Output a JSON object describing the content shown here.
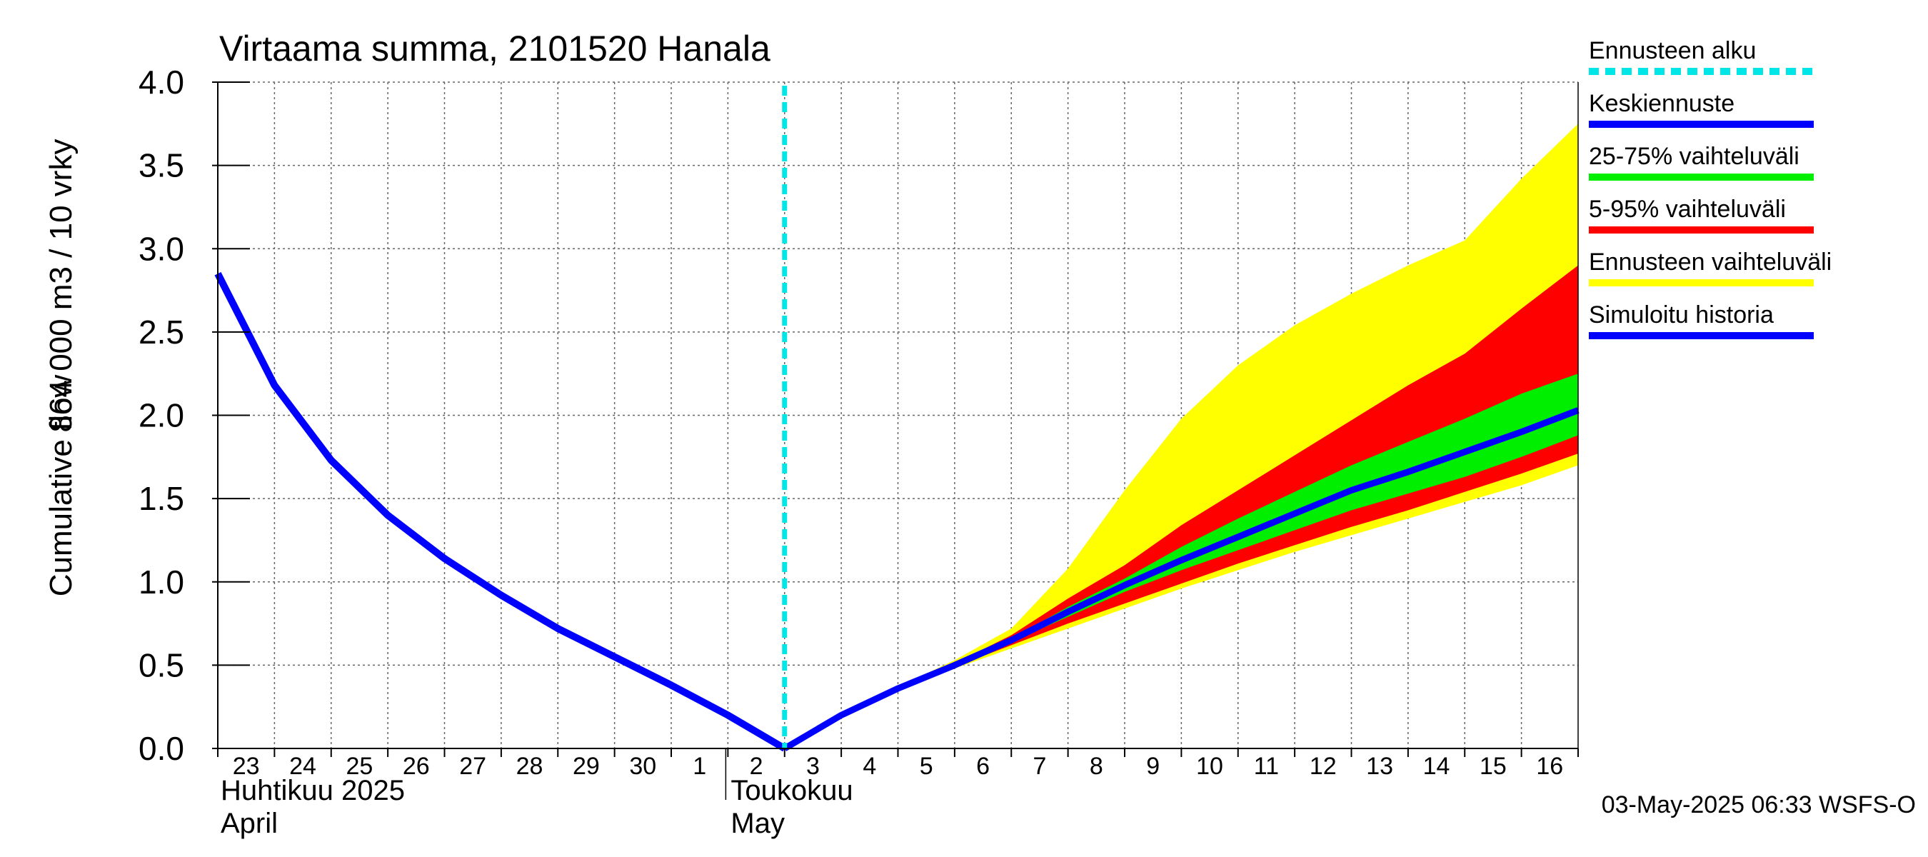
{
  "chart_data": {
    "type": "area",
    "title": "Virtaama summa, 2101520 Hanala",
    "ylabel_line1": "Cumulative flow",
    "ylabel_line2": "864 000 m3 / 10 vrky",
    "ylim": [
      0,
      4.0
    ],
    "y_ticks": [
      "0.0",
      "0.5",
      "1.0",
      "1.5",
      "2.0",
      "2.5",
      "3.0",
      "3.5",
      "4.0"
    ],
    "x_range_days": [
      0,
      24
    ],
    "x_day_labels": [
      "23",
      "24",
      "25",
      "26",
      "27",
      "28",
      "29",
      "30",
      "1",
      "2",
      "3",
      "4",
      "5",
      "6",
      "7",
      "8",
      "9",
      "10",
      "11",
      "12",
      "13",
      "14",
      "15",
      "16"
    ],
    "month_labels": [
      {
        "fi": "Huhtikuu  2025",
        "en": "April",
        "day": 0
      },
      {
        "fi": "Toukokuu",
        "en": "May",
        "day": 9
      }
    ],
    "forecast_start_day": 10,
    "legend": [
      {
        "label": "Ennusteen alku",
        "color": "#00e5e5",
        "style": "dashed"
      },
      {
        "label": "Keskiennuste",
        "color": "#0000ff",
        "style": "line"
      },
      {
        "label": "25-75% vaihteluväli",
        "color": "#00ee00",
        "style": "line"
      },
      {
        "label": "5-95% vaihteluväli",
        "color": "#ff0000",
        "style": "line"
      },
      {
        "label": "Ennusteen vaihteluväli",
        "color": "#ffff00",
        "style": "line"
      },
      {
        "label": "Simuloitu historia",
        "color": "#0000ff",
        "style": "line"
      }
    ],
    "history": {
      "x": [
        0,
        1,
        2,
        3,
        4,
        5,
        6,
        7,
        8,
        9,
        10
      ],
      "y": [
        2.85,
        2.18,
        1.73,
        1.4,
        1.14,
        0.92,
        0.72,
        0.55,
        0.38,
        0.2,
        0.0
      ]
    },
    "forecast_x": [
      10,
      11,
      12,
      13,
      14,
      15,
      16,
      17,
      18,
      19,
      20,
      21,
      22,
      23,
      24
    ],
    "median": [
      0.0,
      0.2,
      0.36,
      0.5,
      0.65,
      0.82,
      0.98,
      1.13,
      1.27,
      1.41,
      1.55,
      1.66,
      1.78,
      1.9,
      2.03
    ],
    "range_min": [
      0.0,
      0.2,
      0.35,
      0.48,
      0.6,
      0.72,
      0.84,
      0.96,
      1.07,
      1.18,
      1.28,
      1.38,
      1.48,
      1.58,
      1.7
    ],
    "range_max": [
      0.0,
      0.2,
      0.37,
      0.53,
      0.72,
      1.08,
      1.55,
      1.98,
      2.3,
      2.54,
      2.73,
      2.9,
      3.05,
      3.42,
      3.75
    ],
    "p5": [
      0.0,
      0.2,
      0.35,
      0.49,
      0.62,
      0.75,
      0.87,
      0.99,
      1.11,
      1.22,
      1.33,
      1.43,
      1.54,
      1.65,
      1.77
    ],
    "p95": [
      0.0,
      0.2,
      0.37,
      0.51,
      0.68,
      0.9,
      1.1,
      1.34,
      1.55,
      1.76,
      1.97,
      2.18,
      2.37,
      2.64,
      2.9
    ],
    "p25": [
      0.0,
      0.2,
      0.36,
      0.5,
      0.64,
      0.79,
      0.94,
      1.07,
      1.19,
      1.31,
      1.43,
      1.53,
      1.63,
      1.75,
      1.88
    ],
    "p75": [
      0.0,
      0.2,
      0.36,
      0.51,
      0.66,
      0.85,
      1.02,
      1.21,
      1.38,
      1.54,
      1.7,
      1.84,
      1.98,
      2.13,
      2.25
    ]
  },
  "footer": {
    "timestamp": "03-May-2025 06:33 WSFS-O"
  }
}
